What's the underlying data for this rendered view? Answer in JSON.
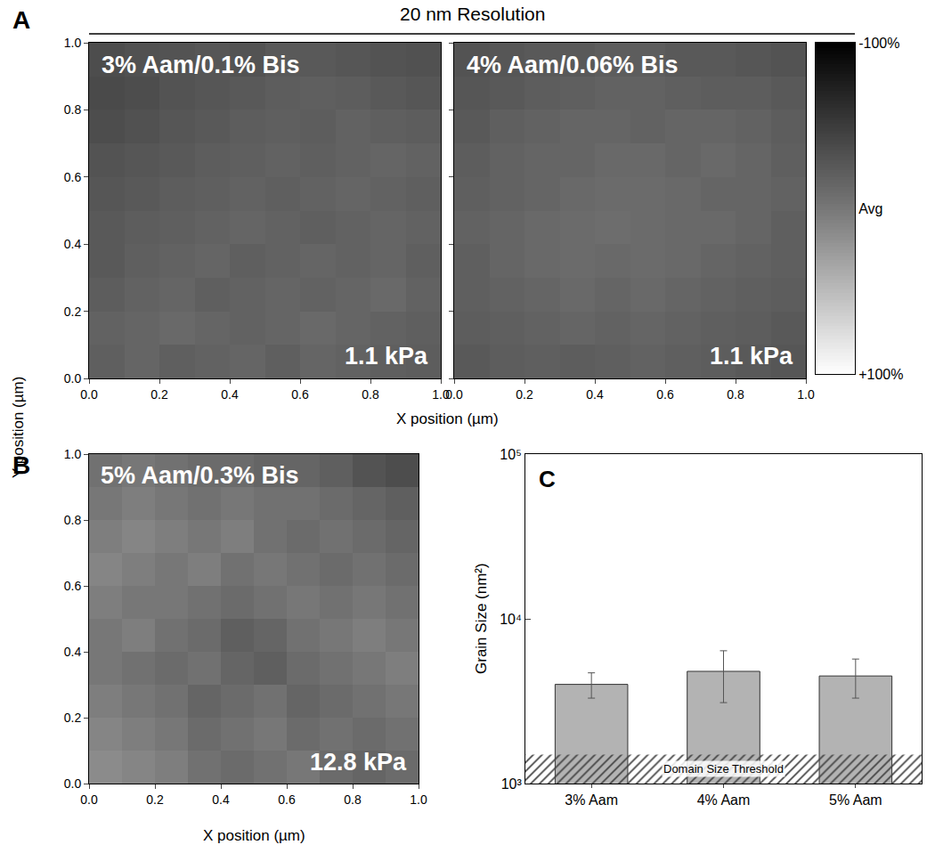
{
  "chart_data": [
    {
      "type": "heatmap",
      "panel": "A",
      "panel_title": "20 nm Resolution",
      "title": "3% Aam/0.1% Bis",
      "annotation": "1.1 kPa",
      "xlabel": "X position (µm)",
      "ylabel": "Y position (µm)",
      "xlim": [
        0,
        1
      ],
      "ylim": [
        0,
        1
      ],
      "xticks": [
        {
          "value": 0,
          "label": "0.0"
        },
        0.2,
        0.4,
        0.6,
        0.8,
        {
          "value": 1,
          "label": "1.0"
        }
      ],
      "yticks": [
        {
          "value": 0,
          "label": "0.0"
        },
        0.2,
        0.4,
        0.6,
        0.8,
        {
          "value": 1,
          "label": "1.0"
        }
      ],
      "z": [
        [
          -20,
          -15,
          -20,
          -18,
          -15,
          -20,
          -15,
          -18,
          -20,
          -22
        ],
        [
          -18,
          -15,
          -12,
          -15,
          -18,
          -15,
          -12,
          -15,
          -18,
          -20
        ],
        [
          -22,
          -18,
          -15,
          -20,
          -18,
          -15,
          -18,
          -15,
          -12,
          -18
        ],
        [
          -25,
          -20,
          -18,
          -15,
          -20,
          -18,
          -15,
          -18,
          -15,
          -20
        ],
        [
          -25,
          -22,
          -20,
          -18,
          -15,
          -18,
          -20,
          -18,
          -15,
          -18
        ],
        [
          -28,
          -25,
          -22,
          -20,
          -18,
          -20,
          -18,
          -15,
          -18,
          -20
        ],
        [
          -30,
          -28,
          -25,
          -22,
          -20,
          -18,
          -20,
          -18,
          -15,
          -18
        ],
        [
          -35,
          -32,
          -28,
          -25,
          -22,
          -20,
          -22,
          -18,
          -20,
          -22
        ],
        [
          -38,
          -35,
          -30,
          -28,
          -25,
          -22,
          -20,
          -22,
          -25,
          -28
        ],
        [
          -35,
          -32,
          -30,
          -28,
          -30,
          -25,
          -25,
          -28,
          -30,
          -32
        ]
      ],
      "colorbar": {
        "range": [
          -100,
          100
        ],
        "ticks": [
          {
            "value": -100,
            "label": "-100%"
          },
          {
            "value": 0,
            "label": "Avg"
          },
          {
            "value": 100,
            "label": "+100%"
          }
        ]
      }
    },
    {
      "type": "heatmap",
      "title": "4% Aam/0.06% Bis",
      "annotation": "1.1 kPa",
      "xlim": [
        0,
        1
      ],
      "ylim": [
        0,
        1
      ],
      "xticks": [
        {
          "value": 0,
          "label": "0.0"
        },
        0.2,
        0.4,
        0.6,
        0.8,
        {
          "value": 1,
          "label": "1.0"
        }
      ],
      "yticks": [
        0,
        0.2,
        0.4,
        0.6,
        0.8,
        1
      ],
      "tick_labels": "x",
      "z": [
        [
          -25,
          -22,
          -20,
          -22,
          -20,
          -18,
          -20,
          -22,
          -25,
          -28
        ],
        [
          -22,
          -20,
          -18,
          -15,
          -18,
          -15,
          -18,
          -20,
          -22,
          -25
        ],
        [
          -20,
          -18,
          -15,
          -12,
          -15,
          -12,
          -15,
          -18,
          -20,
          -22
        ],
        [
          -20,
          -15,
          -12,
          -10,
          -12,
          -10,
          -12,
          -15,
          -18,
          -20
        ],
        [
          -18,
          -15,
          -12,
          -10,
          -8,
          -10,
          -12,
          -12,
          -15,
          -20
        ],
        [
          -20,
          -18,
          -15,
          -12,
          -10,
          -10,
          -12,
          -15,
          -15,
          -18
        ],
        [
          -22,
          -18,
          -15,
          -15,
          -12,
          -12,
          -15,
          -12,
          -15,
          -20
        ],
        [
          -25,
          -20,
          -18,
          -15,
          -15,
          -18,
          -15,
          -15,
          -18,
          -22
        ],
        [
          -28,
          -25,
          -22,
          -20,
          -18,
          -18,
          -20,
          -22,
          -22,
          -25
        ],
        [
          -30,
          -28,
          -25,
          -25,
          -22,
          -22,
          -25,
          -25,
          -28,
          -30
        ]
      ]
    },
    {
      "type": "heatmap",
      "panel": "B",
      "title": "5% Aam/0.3% Bis",
      "annotation": "12.8 kPa",
      "xlabel": "X position (µm)",
      "xlim": [
        0,
        1
      ],
      "ylim": [
        0,
        1
      ],
      "xticks": [
        {
          "value": 0,
          "label": "0.0"
        },
        0.2,
        0.4,
        0.6,
        0.8,
        {
          "value": 1,
          "label": "1.0"
        }
      ],
      "yticks": [
        {
          "value": 0,
          "label": "0.0"
        },
        0.2,
        0.4,
        0.6,
        0.8,
        {
          "value": 1,
          "label": "1.0"
        }
      ],
      "z": [
        [
          15,
          10,
          5,
          -5,
          -10,
          -5,
          0,
          -10,
          -15,
          -10
        ],
        [
          10,
          5,
          0,
          -10,
          -5,
          0,
          -10,
          -5,
          -10,
          -5
        ],
        [
          5,
          0,
          -5,
          -15,
          -10,
          -5,
          -15,
          -10,
          -5,
          0
        ],
        [
          0,
          -5,
          -10,
          -5,
          -15,
          -20,
          -10,
          -5,
          0,
          5
        ],
        [
          0,
          5,
          -5,
          -10,
          -20,
          -15,
          -5,
          0,
          5,
          0
        ],
        [
          5,
          0,
          0,
          -5,
          -10,
          -5,
          0,
          -5,
          0,
          -5
        ],
        [
          10,
          5,
          0,
          5,
          -5,
          0,
          -5,
          -10,
          -5,
          -10
        ],
        [
          5,
          10,
          5,
          0,
          5,
          -5,
          -10,
          -5,
          -10,
          -15
        ],
        [
          0,
          5,
          0,
          -5,
          0,
          -5,
          -5,
          -10,
          -15,
          -20
        ],
        [
          -5,
          0,
          -5,
          -10,
          -10,
          -15,
          -15,
          -20,
          -30,
          -35
        ]
      ]
    },
    {
      "type": "bar",
      "panel": "C",
      "categories": [
        "3% Aam",
        "4% Aam",
        "5% Aam"
      ],
      "values": [
        4000,
        4800,
        4500
      ],
      "error_plus": [
        700,
        1600,
        1200
      ],
      "error_minus": [
        700,
        1700,
        1200
      ],
      "color": "#b3b3b3",
      "ylabel": "Grain Size (nm²)",
      "log": "y",
      "ylim": [
        1000,
        100000
      ],
      "yticks": [
        {
          "value": 1000,
          "label": "10³"
        },
        {
          "value": 10000,
          "label": "10⁴"
        },
        {
          "value": 100000,
          "label": "10⁵"
        }
      ],
      "threshold": 1500,
      "threshold_label": "Domain Size Threshold"
    }
  ]
}
